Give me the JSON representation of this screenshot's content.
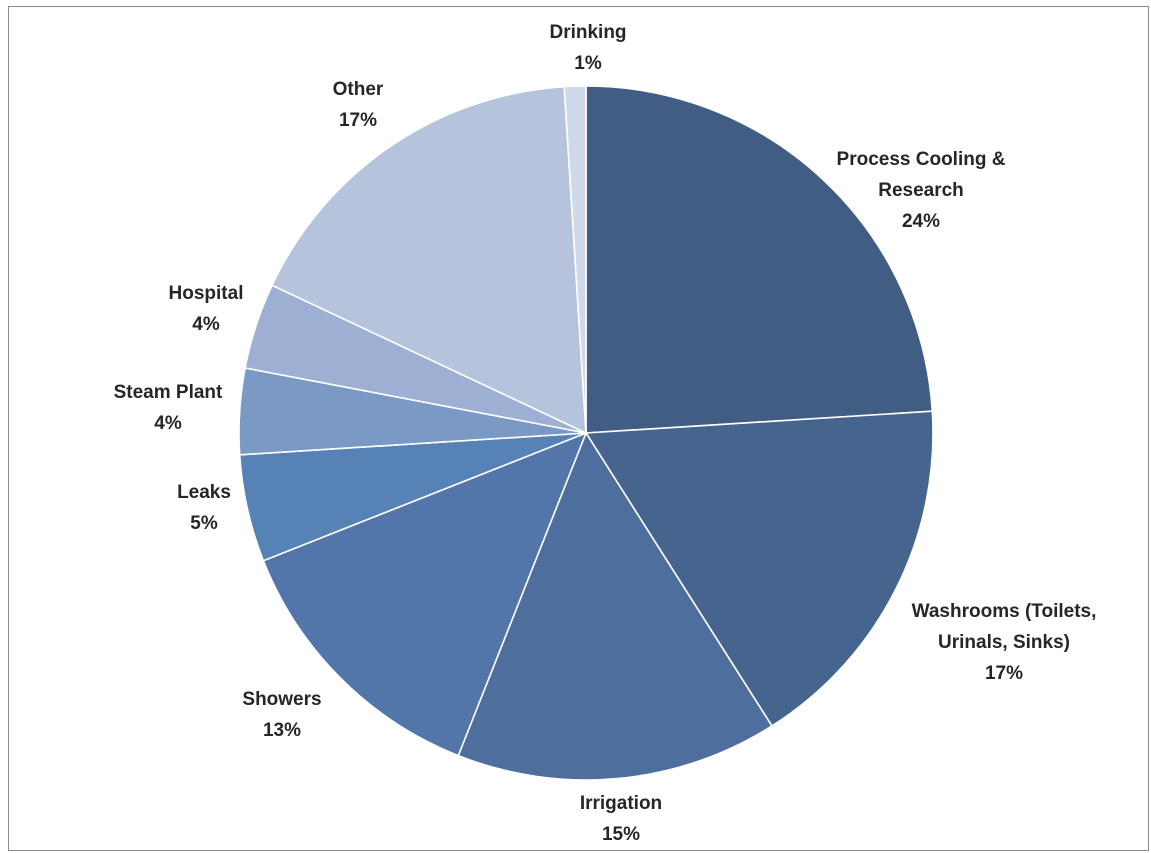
{
  "chart_data": {
    "type": "pie",
    "title": "",
    "start_angle_deg": 0,
    "direction": "clockwise",
    "legend": "none",
    "slices": [
      {
        "label_lines": [
          "Process Cooling &",
          "Research"
        ],
        "value": 24,
        "value_label": "24%",
        "color": "#415d83"
      },
      {
        "label_lines": [
          "Washrooms (Toilets,",
          "Urinals, Sinks)"
        ],
        "value": 17,
        "value_label": "17%",
        "color": "#46658e"
      },
      {
        "label_lines": [
          "Irrigation"
        ],
        "value": 15,
        "value_label": "15%",
        "color": "#4e6e9d"
      },
      {
        "label_lines": [
          "Showers"
        ],
        "value": 13,
        "value_label": "13%",
        "color": "#5276aa"
      },
      {
        "label_lines": [
          "Leaks"
        ],
        "value": 5,
        "value_label": "5%",
        "color": "#5682b6"
      },
      {
        "label_lines": [
          "Steam Plant"
        ],
        "value": 4,
        "value_label": "4%",
        "color": "#7b99c5"
      },
      {
        "label_lines": [
          "Hospital"
        ],
        "value": 4,
        "value_label": "4%",
        "color": "#9dafd2"
      },
      {
        "label_lines": [
          "Other"
        ],
        "value": 17,
        "value_label": "17%",
        "color": "#b5c3dd"
      },
      {
        "label_lines": [
          "Drinking"
        ],
        "value": 1,
        "value_label": "1%",
        "color": "#cfd9ea"
      }
    ]
  }
}
